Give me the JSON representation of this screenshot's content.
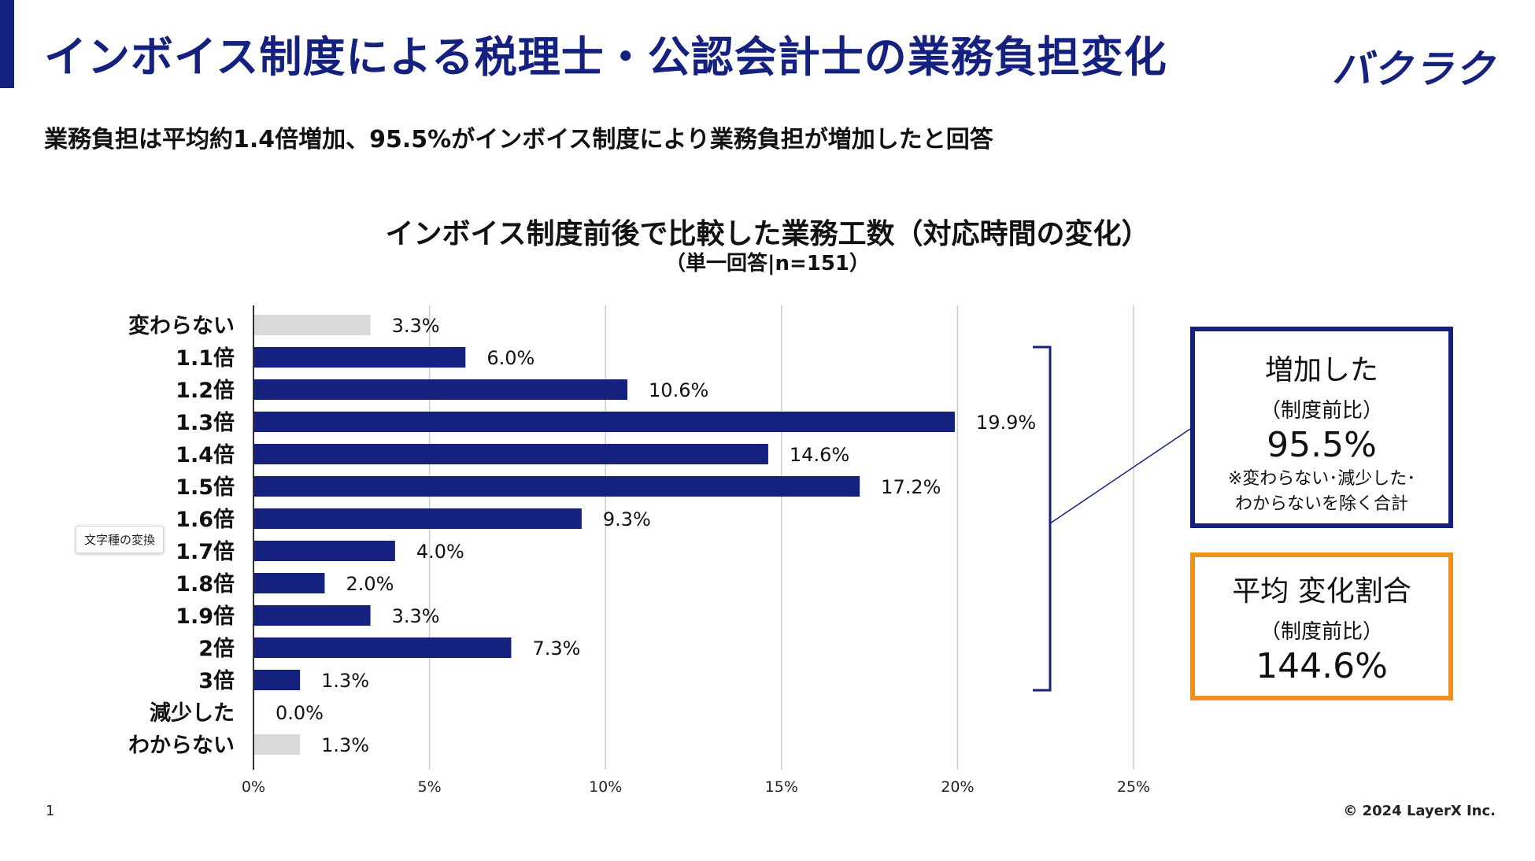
{
  "header": {
    "title": "インボイス制度による税理士・公認会計士の業務負担変化",
    "logo": "バクラク",
    "subtitle": "業務負担は平均約1.4倍増加、95.5%がインボイス制度により業務負担が増加したと回答"
  },
  "chart_data": {
    "type": "bar",
    "orientation": "horizontal",
    "title": "インボイス制度前後で比較した業務工数（対応時間の変化）",
    "subtitle": "（単一回答|n=151）",
    "categories": [
      "変わらない",
      "1.1倍",
      "1.2倍",
      "1.3倍",
      "1.4倍",
      "1.5倍",
      "1.6倍",
      "1.7倍",
      "1.8倍",
      "1.9倍",
      "2倍",
      "3倍",
      "減少した",
      "わからない"
    ],
    "values": [
      3.3,
      6.0,
      10.6,
      19.9,
      14.6,
      17.2,
      9.3,
      4.0,
      2.0,
      3.3,
      7.3,
      1.3,
      0.0,
      1.3
    ],
    "value_labels": [
      "3.3%",
      "6.0%",
      "10.6%",
      "19.9%",
      "14.6%",
      "17.2%",
      "9.3%",
      "4.0%",
      "2.0%",
      "3.3%",
      "7.3%",
      "1.3%",
      "0.0%",
      "1.3%"
    ],
    "highlight": [
      false,
      true,
      true,
      true,
      true,
      true,
      true,
      true,
      true,
      true,
      true,
      true,
      false,
      false
    ],
    "xlim": [
      0,
      25
    ],
    "xticks": [
      0,
      5,
      10,
      15,
      20,
      25
    ],
    "xtick_labels": [
      "0%",
      "5%",
      "10%",
      "15%",
      "20%",
      "25%"
    ],
    "grid": true,
    "colors": {
      "highlight": "#14217f",
      "other": "#d9d9d9",
      "grid": "#cccccc"
    }
  },
  "tooltip": {
    "text": "文字種の変換"
  },
  "summary_increase": {
    "title": "増加した",
    "sub": "（制度前比）",
    "value": "95.5%",
    "note_line1": "※変わらない･減少した･",
    "note_line2": "わからないを除く合計"
  },
  "summary_average": {
    "title": "平均 変化割合",
    "sub": "（制度前比）",
    "value": "144.6%"
  },
  "footer": {
    "page": "1",
    "copyright": "© 2024 LayerX Inc."
  },
  "colors": {
    "brand": "#14217f",
    "accent_orange": "#f0901e"
  }
}
